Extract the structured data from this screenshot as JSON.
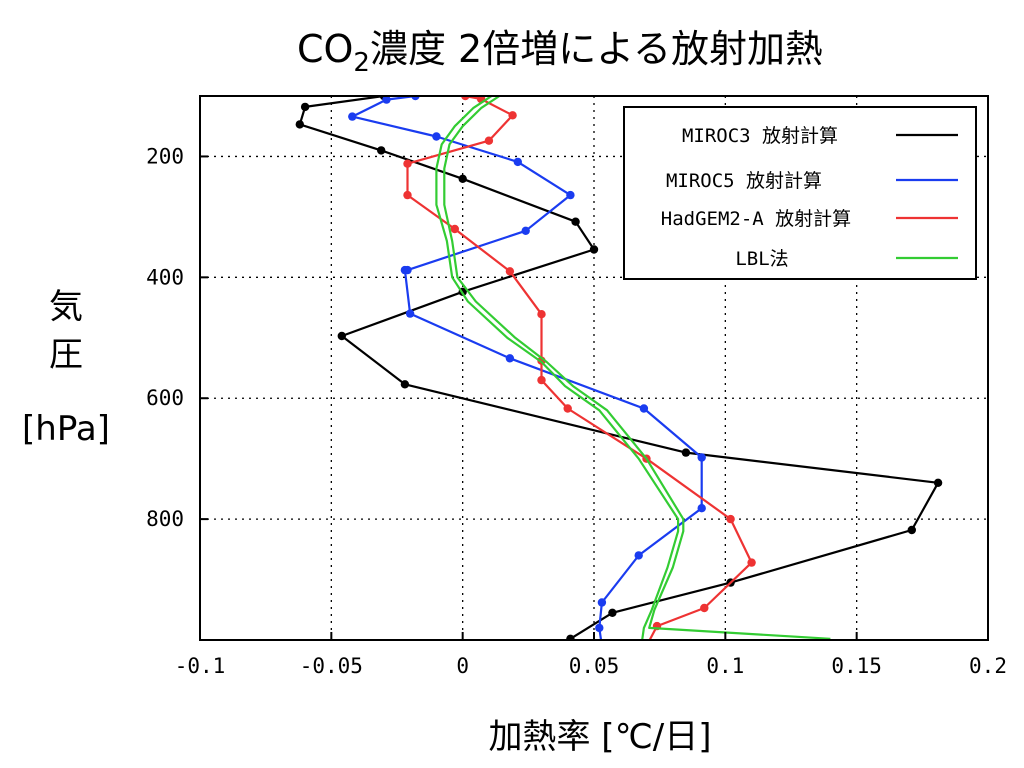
{
  "chart_data": {
    "type": "line",
    "title": {
      "pre": "CO",
      "sub": "2",
      "post": "濃度 2倍増による放射加熱"
    },
    "xlabel": "加熱率 [℃/日]",
    "ylabel_lines": [
      "気",
      "圧",
      "[hPa]"
    ],
    "xlim": [
      -0.1,
      0.2
    ],
    "ylim": [
      1000,
      100
    ],
    "x_ticks": [
      -0.1,
      -0.05,
      0,
      0.05,
      0.1,
      0.15,
      0.2
    ],
    "x_tick_labels": [
      "-0.1",
      "-0.05",
      "0",
      "0.05",
      "0.1",
      "0.15",
      "0.2"
    ],
    "y_ticks": [
      200,
      400,
      600,
      800
    ],
    "y_tick_labels": [
      "200",
      "400",
      "600",
      "800"
    ],
    "grid": true,
    "legend_position": "top-right",
    "series": [
      {
        "name": "MIROC3 放射計算",
        "color": "#000000",
        "markers": true,
        "x": [
          0.041,
          0.057,
          0.102,
          0.171,
          0.181,
          0.085,
          -0.022,
          -0.046,
          0.0,
          0.05,
          0.043,
          0.0,
          -0.031,
          -0.062,
          -0.06,
          -0.03
        ],
        "y": [
          998,
          955,
          905,
          818,
          740,
          690,
          577,
          497,
          424,
          354,
          308,
          237,
          190,
          147,
          118,
          100
        ]
      },
      {
        "name": "MIROC5 放射計算",
        "color": "#1a3cf0",
        "markers": true,
        "x": [
          0.053,
          0.052,
          0.053,
          0.067,
          0.091,
          0.091,
          0.069,
          0.018,
          -0.02,
          -0.022,
          -0.021,
          0.024,
          0.041,
          0.021,
          -0.01,
          -0.042,
          -0.029,
          -0.018
        ],
        "y": [
          1010,
          980,
          938,
          860,
          782,
          698,
          617,
          534,
          460,
          388,
          388,
          323,
          264,
          209,
          167,
          134,
          106,
          100
        ]
      },
      {
        "name": "HadGEM2-A 放射計算",
        "color": "#ee3333",
        "markers": true,
        "x": [
          0.07,
          0.074,
          0.092,
          0.11,
          0.102,
          0.07,
          0.04,
          0.03,
          0.03,
          0.03,
          0.018,
          -0.003,
          -0.021,
          -0.021,
          0.01,
          0.019,
          0.007,
          0.001
        ],
        "y": [
          1010,
          977,
          947,
          872,
          800,
          700,
          617,
          570,
          538,
          461,
          390,
          320,
          264,
          212,
          174,
          132,
          105,
          100
        ]
      },
      {
        "name": "LBL法",
        "color": "#33cc33",
        "markers": false,
        "x": [
          0.14,
          0.071,
          0.073,
          0.08,
          0.084,
          0.084,
          0.07,
          0.055,
          0.042,
          0.032,
          0.02,
          0.005,
          -0.002,
          -0.004,
          -0.007,
          -0.007,
          -0.005,
          0.0,
          0.007,
          0.014
        ],
        "y": [
          998,
          980,
          950,
          880,
          820,
          800,
          700,
          620,
          580,
          540,
          500,
          440,
          400,
          340,
          280,
          220,
          180,
          150,
          120,
          100
        ]
      },
      {
        "name": "",
        "color": "#33cc33",
        "markers": false,
        "x": [
          0.068,
          0.069,
          0.072,
          0.078,
          0.082,
          0.082,
          0.067,
          0.052,
          0.039,
          0.03,
          0.017,
          0.002,
          -0.004,
          -0.006,
          -0.01,
          -0.01,
          -0.008,
          -0.003,
          0.004,
          0.011
        ],
        "y": [
          1010,
          980,
          950,
          880,
          820,
          800,
          700,
          620,
          580,
          540,
          500,
          440,
          400,
          340,
          280,
          220,
          180,
          150,
          120,
          100
        ]
      }
    ]
  }
}
